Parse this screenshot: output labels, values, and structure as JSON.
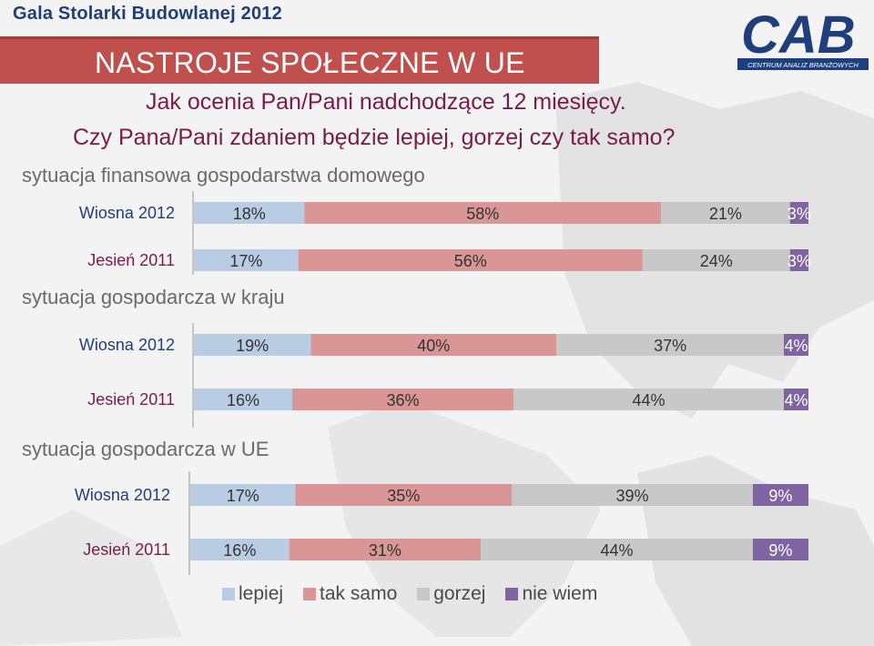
{
  "header": {
    "event_title": "Gala Stolarki Budowlanej 2012",
    "banner_title": "NASTROJE SPOŁECZNE W UE",
    "question_line1": "Jak ocenia Pan/Pani nadchodzące 12 miesięcy.",
    "question_line2": "Czy Pana/Pani zdaniem będzie lepiej, gorzej czy tak samo?"
  },
  "logo": {
    "text": "CAB",
    "subtitle": "CENTRUM ANALIZ BRANŻOWYCH",
    "color": "#1e3f7c"
  },
  "chart_data": {
    "type": "bar",
    "orientation": "horizontal",
    "stacked": true,
    "percent": true,
    "series": [
      {
        "name": "lepiej",
        "color": "#b8cce4"
      },
      {
        "name": "tak samo",
        "color": "#d99694"
      },
      {
        "name": "gorzej",
        "color": "#c8c8c8"
      },
      {
        "name": "nie wiem",
        "color": "#8064a2"
      }
    ],
    "groups": [
      {
        "title": "sytuacja finansowa gospodarstwa domowego",
        "rows": [
          {
            "label": "Wiosna 2012",
            "values": [
              18,
              58,
              21,
              3
            ],
            "labels": [
              "18%",
              "58%",
              "21%",
              "3%"
            ]
          },
          {
            "label": "Jesień 2011",
            "values": [
              17,
              56,
              24,
              3
            ],
            "labels": [
              "17%",
              "56%",
              "24%",
              "3%"
            ]
          }
        ]
      },
      {
        "title": "sytuacja gospodarcza w kraju",
        "rows": [
          {
            "label": "Wiosna 2012",
            "values": [
              19,
              40,
              37,
              4
            ],
            "labels": [
              "19%",
              "40%",
              "37%",
              "4%"
            ]
          },
          {
            "label": "Jesień 2011",
            "values": [
              16,
              36,
              44,
              4
            ],
            "labels": [
              "16%",
              "36%",
              "44%",
              "4%"
            ]
          }
        ]
      },
      {
        "title": "sytuacja gospodarcza w UE",
        "rows": [
          {
            "label": "Wiosna 2012",
            "values": [
              17,
              35,
              39,
              9
            ],
            "labels": [
              "17%",
              "35%",
              "39%",
              "9%"
            ]
          },
          {
            "label": "Jesień 2011",
            "values": [
              16,
              31,
              44,
              9
            ],
            "labels": [
              "16%",
              "31%",
              "44%",
              "9%"
            ]
          }
        ]
      }
    ],
    "legend_position": "bottom"
  }
}
